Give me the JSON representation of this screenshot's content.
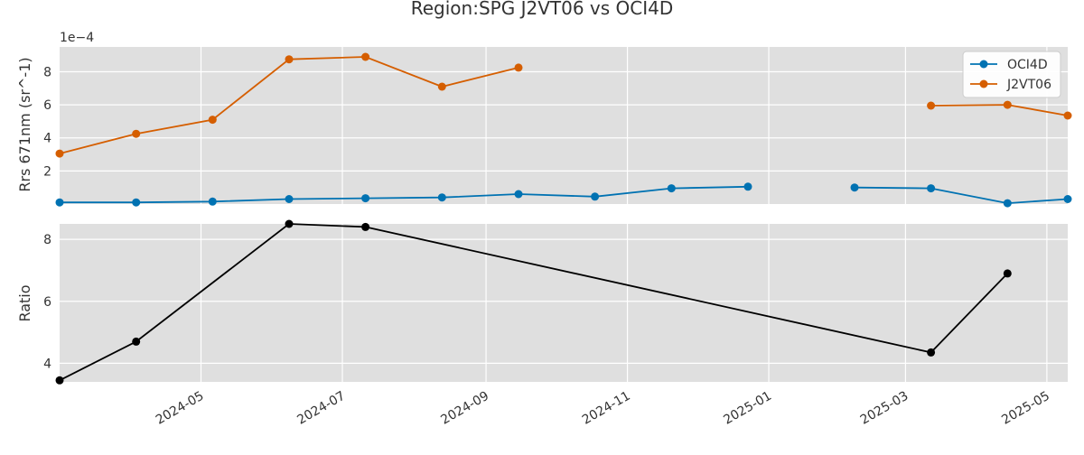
{
  "colors": {
    "oci4d": "#0072b2",
    "j2vt06": "#d55e00",
    "ratio": "#000000",
    "panel_bg": "#dfdfdf",
    "grid": "#ffffff"
  },
  "chart_data": [
    {
      "type": "line",
      "title": "Region:SPG J2VT06 vs OCI4D",
      "ylabel": "Rrs 671nm (sr^-1)",
      "offset_label": "1e−4",
      "y_scale_factor": 0.0001,
      "ylim": [
        0.0,
        9.5
      ],
      "xlim": [
        "2024-03-01",
        "2025-05-10"
      ],
      "yticks": [
        2,
        4,
        6,
        8
      ],
      "legend_position": "top-right",
      "grid": true,
      "series": [
        {
          "name": "OCI4D",
          "color": "#0072b2",
          "points": [
            {
              "x": "2024-03-01",
              "y": 0.1
            },
            {
              "x": "2024-04-03",
              "y": 0.1
            },
            {
              "x": "2024-05-06",
              "y": 0.15
            },
            {
              "x": "2024-06-08",
              "y": 0.3
            },
            {
              "x": "2024-07-11",
              "y": 0.35
            },
            {
              "x": "2024-08-13",
              "y": 0.4
            },
            {
              "x": "2024-09-15",
              "y": 0.6
            },
            {
              "x": "2024-10-18",
              "y": 0.45
            },
            {
              "x": "2024-11-20",
              "y": 0.95
            },
            {
              "x": "2024-12-23",
              "y": 1.05
            },
            {
              "x": null,
              "y": null
            },
            {
              "x": "2025-02-07",
              "y": 1.0
            },
            {
              "x": "2025-03-12",
              "y": 0.95
            },
            {
              "x": "2025-04-14",
              "y": 0.05
            },
            {
              "x": "2025-05-10",
              "y": 0.3
            }
          ]
        },
        {
          "name": "J2VT06",
          "color": "#d55e00",
          "points": [
            {
              "x": "2024-03-01",
              "y": 3.05
            },
            {
              "x": "2024-04-03",
              "y": 4.25
            },
            {
              "x": "2024-05-06",
              "y": 5.1
            },
            {
              "x": "2024-06-08",
              "y": 8.75
            },
            {
              "x": "2024-07-11",
              "y": 8.9
            },
            {
              "x": "2024-08-13",
              "y": 7.1
            },
            {
              "x": "2024-09-15",
              "y": 8.25
            },
            {
              "x": null,
              "y": null
            },
            {
              "x": "2025-03-12",
              "y": 5.95
            },
            {
              "x": "2025-04-14",
              "y": 6.0
            },
            {
              "x": "2025-05-10",
              "y": 5.35
            }
          ]
        }
      ]
    },
    {
      "type": "line",
      "ylabel": "Ratio",
      "ylim": [
        3.4,
        8.5
      ],
      "xlim": [
        "2024-03-01",
        "2025-05-10"
      ],
      "yticks": [
        4,
        6,
        8
      ],
      "xticks": [
        "2024-05",
        "2024-07",
        "2024-09",
        "2024-11",
        "2025-01",
        "2025-03",
        "2025-05"
      ],
      "grid": true,
      "series": [
        {
          "color": "#000000",
          "points": [
            {
              "x": "2024-03-01",
              "y": 3.45
            },
            {
              "x": "2024-04-03",
              "y": 4.7
            },
            {
              "x": "2024-06-08",
              "y": 8.5
            },
            {
              "x": "2024-07-11",
              "y": 8.4
            },
            {
              "x": "2025-03-12",
              "y": 4.35
            },
            {
              "x": "2025-04-14",
              "y": 6.9
            }
          ]
        }
      ]
    }
  ]
}
